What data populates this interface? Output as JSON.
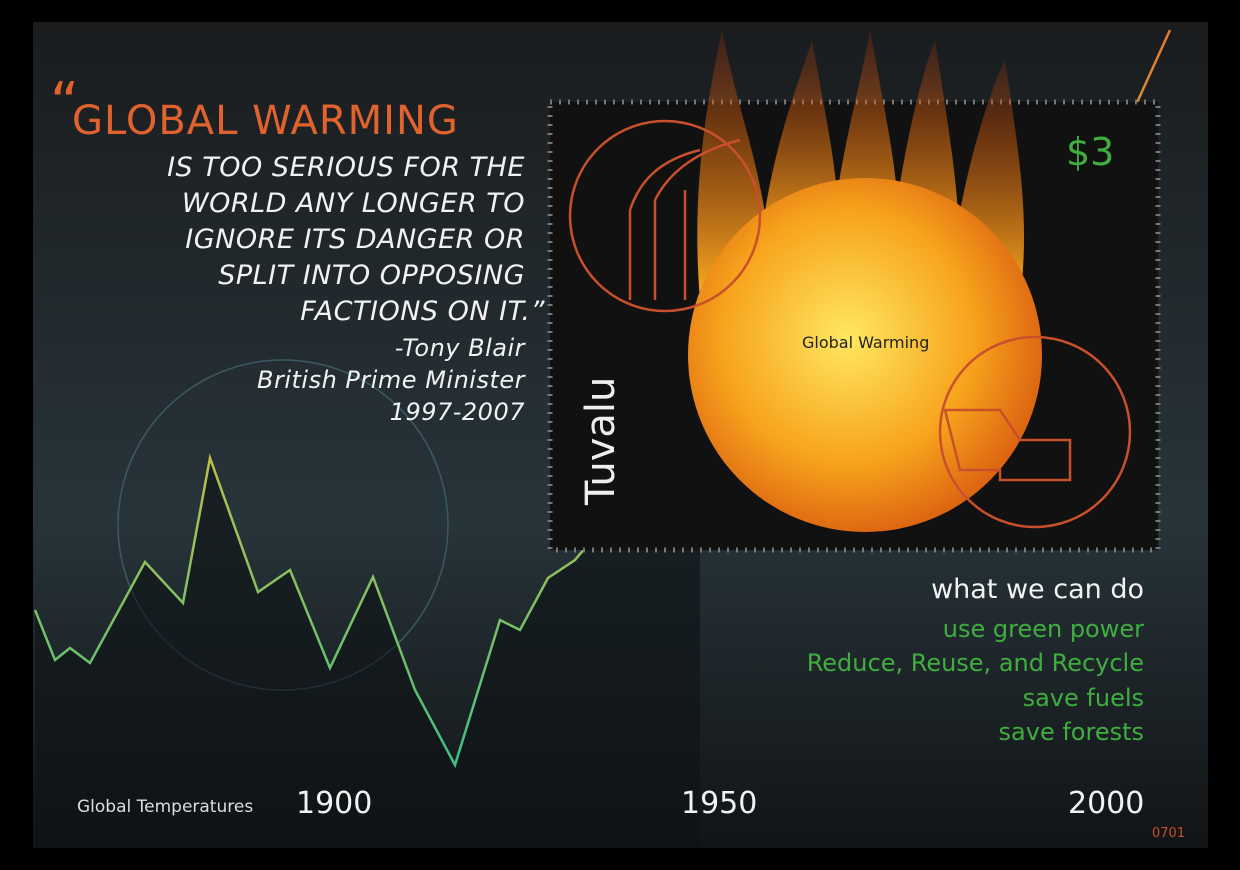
{
  "quote": {
    "open_mark": "“",
    "headline": "GLOBAL WARMING",
    "lines": [
      "IS TOO SERIOUS FOR THE",
      "WORLD ANY LONGER TO",
      "IGNORE ITS DANGER OR",
      "SPLIT INTO OPPOSING",
      "FACTIONS ON IT.”"
    ],
    "attribution": "-Tony Blair",
    "role": "British Prime Minister",
    "years": "1997-2007"
  },
  "stamp": {
    "country": "Tuvalu",
    "value": "$3",
    "caption": "Global Warming"
  },
  "actions": {
    "heading": "what we can do",
    "items": [
      "use green power",
      "Reduce, Reuse, and Recycle",
      "save fuels",
      "save forests"
    ]
  },
  "chart": {
    "label": "Global Temperatures",
    "years": [
      "1900",
      "1950",
      "2000"
    ]
  },
  "serial": "0701"
}
